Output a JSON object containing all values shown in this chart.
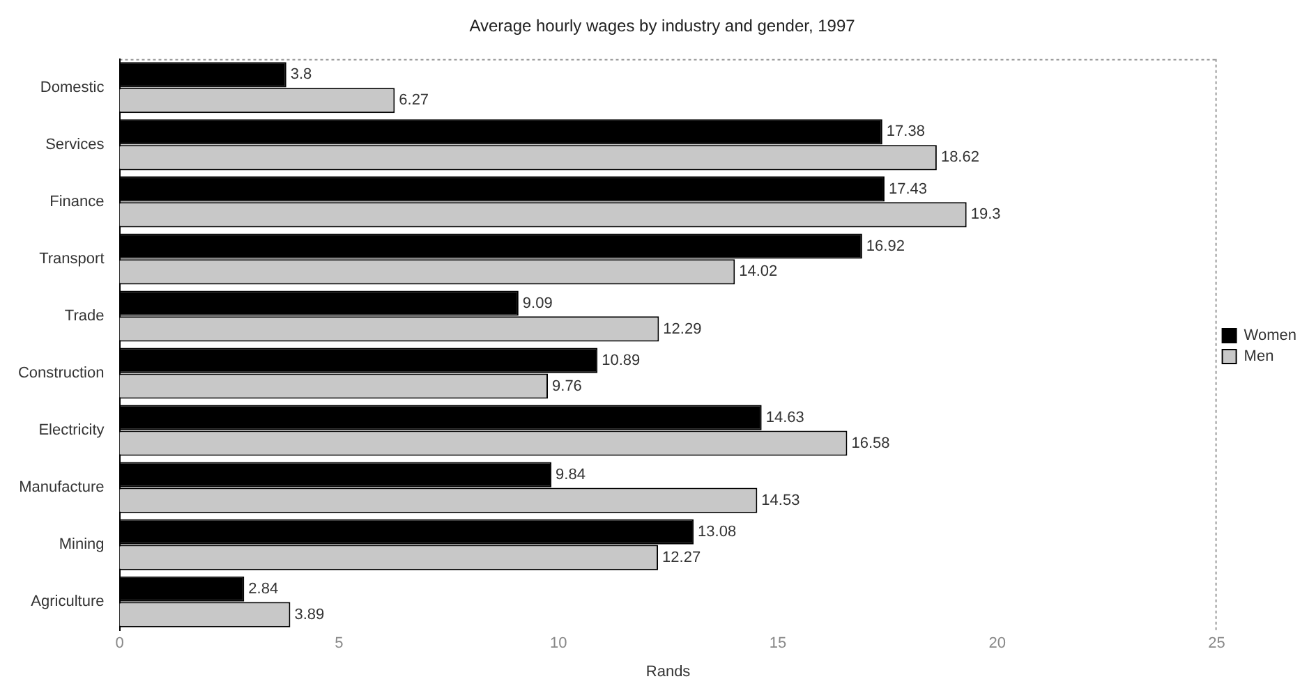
{
  "chart_data": {
    "type": "bar",
    "orientation": "horizontal",
    "title": "Average hourly wages by industry and gender, 1997",
    "xlabel": "Rands",
    "categories": [
      "Domestic",
      "Services",
      "Finance",
      "Transport",
      "Trade",
      "Construction",
      "Electricity",
      "Manufacture",
      "Mining",
      "Agriculture"
    ],
    "series": [
      {
        "name": "Women",
        "color": "#000000",
        "values": [
          3.8,
          17.38,
          17.43,
          16.92,
          9.09,
          10.89,
          14.63,
          9.84,
          13.08,
          2.84
        ]
      },
      {
        "name": "Men",
        "color": "#c8c8c8",
        "values": [
          6.27,
          18.62,
          19.3,
          14.02,
          12.29,
          9.76,
          16.58,
          14.53,
          12.27,
          3.89
        ]
      }
    ],
    "xlim": [
      0,
      25
    ],
    "xticks": [
      0,
      5,
      10,
      15,
      20,
      25
    ],
    "grid": false,
    "legend": "right",
    "data_labels": true
  }
}
